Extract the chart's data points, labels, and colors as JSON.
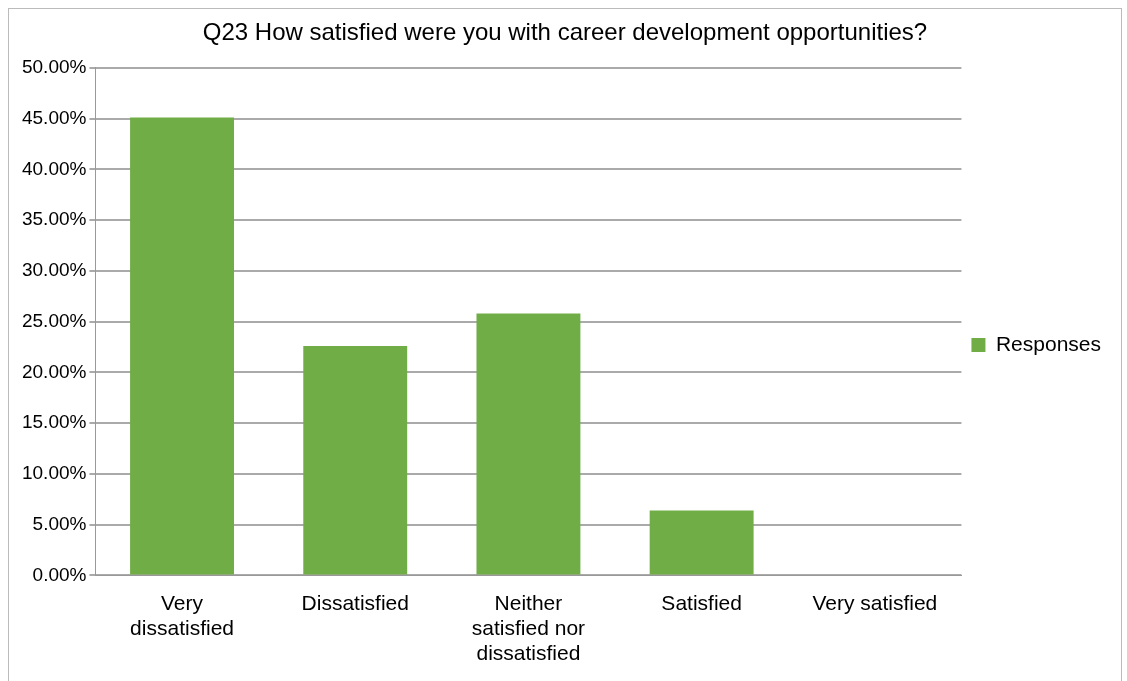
{
  "chart_data": {
    "type": "bar",
    "title": "Q23 How satisfied were you with career development opportunities?",
    "categories": [
      "Very dissatisfied",
      "Dissatisfied",
      "Neither satisfied nor dissatisfied",
      "Satisfied",
      "Very satisfied"
    ],
    "series": [
      {
        "name": "Responses",
        "color": "#70ad47",
        "values": [
          45.1,
          22.6,
          25.8,
          6.4,
          0
        ]
      }
    ],
    "ylim": [
      0,
      50
    ],
    "yticks": [
      {
        "value": 0,
        "label": "0.00%"
      },
      {
        "value": 5,
        "label": "5.00%"
      },
      {
        "value": 10,
        "label": "10.00%"
      },
      {
        "value": 15,
        "label": "15.00%"
      },
      {
        "value": 20,
        "label": "20.00%"
      },
      {
        "value": 25,
        "label": "25.00%"
      },
      {
        "value": 30,
        "label": "30.00%"
      },
      {
        "value": 35,
        "label": "35.00%"
      },
      {
        "value": 40,
        "label": "40.00%"
      },
      {
        "value": 45,
        "label": "45.00%"
      },
      {
        "value": 50,
        "label": "50.00%"
      }
    ],
    "grid": "y",
    "legend": "right"
  }
}
